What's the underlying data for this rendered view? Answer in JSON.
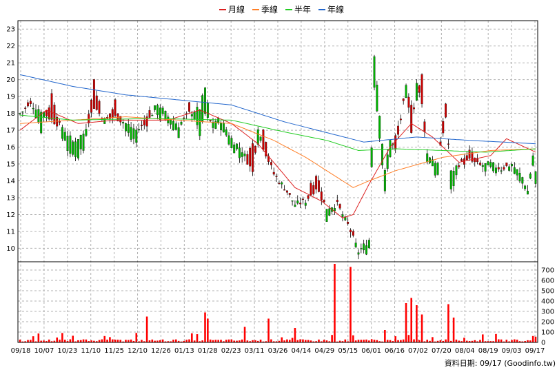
{
  "colors": {
    "up": "#00b200",
    "down": "#cc0000",
    "volume": "#ff0000",
    "grid": "#b0b0b0",
    "monthly": "#dd2020",
    "quarterly": "#ff7f27",
    "half_year": "#22cc22",
    "yearly": "#2266cc"
  },
  "footer": {
    "date_label": "資料日期: 09/17",
    "source": "(Goodinfo.tw)"
  },
  "chart_data": {
    "type": "candlestick",
    "grid": true,
    "legend_position": "top-center",
    "legend": [
      {
        "key": "monthly",
        "label": "月線"
      },
      {
        "key": "quarterly",
        "label": "季線"
      },
      {
        "key": "half_year",
        "label": "半年"
      },
      {
        "key": "yearly",
        "label": "年線"
      }
    ],
    "price_axis": {
      "position": "left",
      "range": [
        9.2,
        23.5
      ],
      "ticks": [
        10,
        11,
        12,
        13,
        14,
        15,
        16,
        17,
        18,
        19,
        20,
        21,
        22,
        23
      ]
    },
    "volume_axis": {
      "position": "right",
      "range": [
        0,
        780
      ],
      "ticks": [
        0,
        100,
        200,
        300,
        400,
        500,
        600,
        700
      ]
    },
    "x_labels": [
      "09/18",
      "10/07",
      "10/23",
      "11/10",
      "11/25",
      "12/10",
      "12/26",
      "01/13",
      "01/28",
      "02/23",
      "03/11",
      "03/26",
      "04/14",
      "04/29",
      "05/15",
      "06/01",
      "06/16",
      "07/02",
      "07/20",
      "08/04",
      "08/19",
      "09/03",
      "09/17"
    ],
    "anchors": [
      [
        0,
        18.0,
        0.0
      ],
      [
        4,
        18.5,
        0.0
      ],
      [
        8,
        18.2,
        1.0
      ],
      [
        12,
        17.6,
        -1.5
      ],
      [
        16,
        17.2,
        0.5
      ],
      [
        20,
        16.3,
        1.0
      ],
      [
        24,
        16.8,
        0.8
      ],
      [
        28,
        18.4,
        -1.5
      ],
      [
        32,
        17.6,
        0.5
      ],
      [
        36,
        17.8,
        -1.0
      ],
      [
        40,
        17.4,
        0.5
      ],
      [
        44,
        17.0,
        0.5
      ],
      [
        48,
        17.4,
        -0.5
      ],
      [
        52,
        18.6,
        0.5
      ],
      [
        56,
        17.8,
        0.5
      ],
      [
        60,
        17.3,
        0.5
      ],
      [
        64,
        18.0,
        -0.5
      ],
      [
        68,
        18.3,
        1.5
      ],
      [
        70,
        19.5,
        1.5
      ],
      [
        72,
        17.5,
        0.0
      ],
      [
        76,
        17.6,
        0.5
      ],
      [
        80,
        16.5,
        0.5
      ],
      [
        84,
        15.8,
        0.5
      ],
      [
        88,
        14.5,
        -1.5
      ],
      [
        90,
        17.2,
        1.0
      ],
      [
        92,
        16.0,
        -1.0
      ],
      [
        96,
        14.4,
        0.0
      ],
      [
        100,
        13.6,
        0.0
      ],
      [
        104,
        12.6,
        0.0
      ],
      [
        108,
        12.8,
        0.0
      ],
      [
        112,
        13.6,
        -1.0
      ],
      [
        116,
        12.4,
        0.5
      ],
      [
        120,
        12.6,
        0.0
      ],
      [
        124,
        11.4,
        0.0
      ],
      [
        128,
        9.8,
        0.0
      ],
      [
        132,
        10.5,
        0.5
      ],
      [
        134,
        21.5,
        2.0
      ],
      [
        138,
        14.5,
        1.0
      ],
      [
        140,
        16.5,
        1.0
      ],
      [
        142,
        15.8,
        -1.0
      ],
      [
        146,
        19.5,
        0.5
      ],
      [
        148,
        17.0,
        -1.5
      ],
      [
        150,
        19.8,
        1.0
      ],
      [
        152,
        18.5,
        -1.5
      ],
      [
        154,
        15.6,
        0.5
      ],
      [
        158,
        15.0,
        0.5
      ],
      [
        161,
        17.8,
        -1.0
      ],
      [
        163,
        14.5,
        1.0
      ],
      [
        166,
        15.0,
        0.0
      ],
      [
        170,
        15.2,
        -0.5
      ],
      [
        174,
        14.9,
        0.0
      ],
      [
        178,
        15.0,
        0.5
      ],
      [
        182,
        14.7,
        0.0
      ],
      [
        186,
        15.0,
        0.0
      ],
      [
        190,
        14.2,
        0.5
      ],
      [
        192,
        13.4,
        0.0
      ],
      [
        194,
        15.5,
        0.5
      ],
      [
        195,
        14.5,
        0.5
      ]
    ],
    "volume_spikes": [
      [
        48,
        250
      ],
      [
        70,
        290
      ],
      [
        71,
        230
      ],
      [
        85,
        150
      ],
      [
        94,
        230
      ],
      [
        104,
        140
      ],
      [
        119,
        760
      ],
      [
        125,
        730
      ],
      [
        138,
        120
      ],
      [
        146,
        380
      ],
      [
        148,
        430
      ],
      [
        150,
        360
      ],
      [
        152,
        270
      ],
      [
        162,
        370
      ],
      [
        164,
        240
      ],
      [
        195,
        55
      ]
    ],
    "ma_anchors": {
      "monthly": [
        [
          0,
          17.0
        ],
        [
          10,
          18.2
        ],
        [
          22,
          17.4
        ],
        [
          36,
          17.6
        ],
        [
          56,
          17.6
        ],
        [
          68,
          18.2
        ],
        [
          80,
          17.4
        ],
        [
          90,
          16.2
        ],
        [
          104,
          13.6
        ],
        [
          114,
          12.8
        ],
        [
          122,
          11.8
        ],
        [
          126,
          12.0
        ],
        [
          132,
          13.8
        ],
        [
          140,
          16.0
        ],
        [
          148,
          17.4
        ],
        [
          156,
          16.6
        ],
        [
          166,
          15.1
        ],
        [
          178,
          15.5
        ],
        [
          184,
          16.5
        ],
        [
          195,
          15.7
        ]
      ],
      "quarterly": [
        [
          0,
          17.4
        ],
        [
          20,
          17.6
        ],
        [
          40,
          17.8
        ],
        [
          60,
          17.6
        ],
        [
          80,
          17.4
        ],
        [
          96,
          16.4
        ],
        [
          108,
          15.4
        ],
        [
          118,
          14.4
        ],
        [
          126,
          13.6
        ],
        [
          132,
          14.0
        ],
        [
          142,
          14.6
        ],
        [
          160,
          15.4
        ],
        [
          178,
          15.8
        ],
        [
          195,
          15.9
        ]
      ],
      "half_year": [
        [
          0,
          17.9
        ],
        [
          20,
          17.6
        ],
        [
          50,
          17.7
        ],
        [
          80,
          17.6
        ],
        [
          100,
          16.9
        ],
        [
          116,
          16.4
        ],
        [
          128,
          15.8
        ],
        [
          142,
          15.9
        ],
        [
          160,
          15.8
        ],
        [
          176,
          15.7
        ],
        [
          195,
          15.9
        ]
      ],
      "yearly": [
        [
          0,
          20.3
        ],
        [
          20,
          19.6
        ],
        [
          40,
          19.1
        ],
        [
          60,
          18.8
        ],
        [
          80,
          18.5
        ],
        [
          100,
          17.5
        ],
        [
          120,
          16.7
        ],
        [
          130,
          16.3
        ],
        [
          150,
          16.6
        ],
        [
          170,
          16.4
        ],
        [
          195,
          16.2
        ]
      ]
    }
  }
}
